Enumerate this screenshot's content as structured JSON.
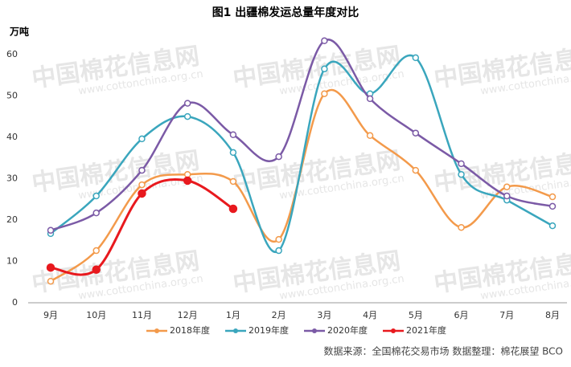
{
  "chart_data": {
    "type": "line",
    "title": "图1 出疆棉发运总量年度对比",
    "y_label": "万吨",
    "categories": [
      "9月",
      "10月",
      "11月",
      "12月",
      "1月",
      "2月",
      "3月",
      "4月",
      "5月",
      "6月",
      "7月",
      "8月"
    ],
    "series": [
      {
        "name": "2018年度",
        "color": "#f39a4b",
        "values": [
          5.2,
          12.6,
          28.5,
          31,
          29.3,
          15.3,
          50.5,
          40.4,
          32,
          18.2,
          28,
          25.6
        ]
      },
      {
        "name": "2019年度",
        "color": "#3aa6bd",
        "values": [
          16.7,
          25.8,
          39.6,
          45,
          36.3,
          12.6,
          56.5,
          50.5,
          59.2,
          31,
          24.8,
          18.6
        ]
      },
      {
        "name": "2020年度",
        "color": "#7b5aa6",
        "values": [
          17.5,
          21.7,
          32,
          48.2,
          40.6,
          35.3,
          63.3,
          49.3,
          41,
          33.6,
          25.8,
          23.3
        ]
      },
      {
        "name": "2021年度",
        "color": "#e8191e",
        "values": [
          8.5,
          8,
          26.4,
          29.5,
          22.7,
          null,
          null,
          null,
          null,
          null,
          null,
          null
        ]
      }
    ],
    "ylim": [
      0,
      65
    ],
    "yticks": [
      0,
      10,
      20,
      30,
      40,
      50,
      60
    ],
    "source": "数据来源：全国棉花交易市场    数据整理：棉花展望 BCO",
    "watermark": "中国棉花信息网",
    "watermark_url": "www.cottonchina.org.cn"
  }
}
